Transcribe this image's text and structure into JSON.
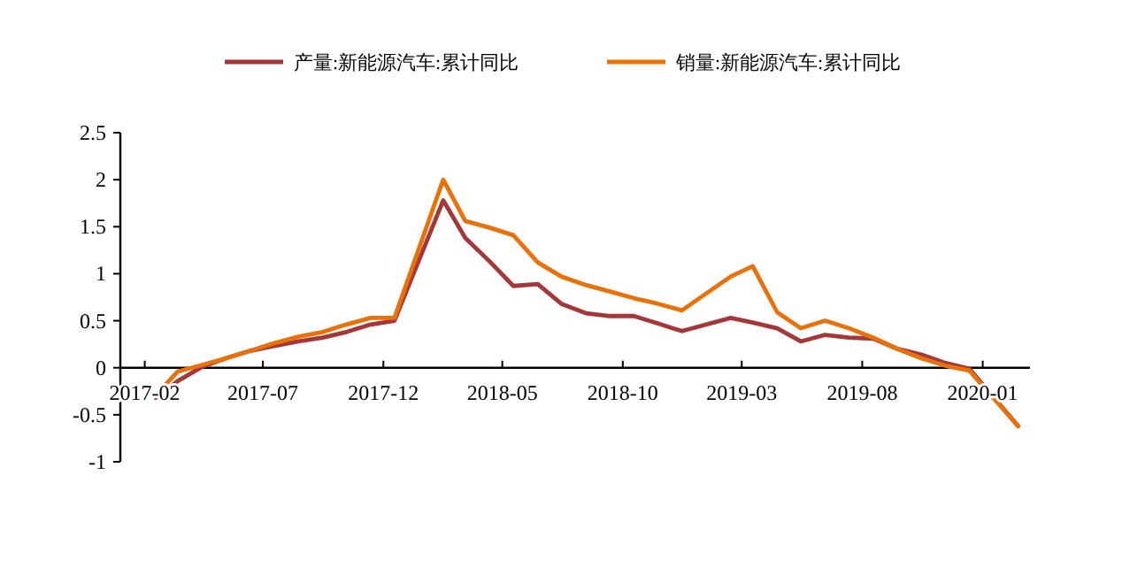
{
  "chart_data": {
    "type": "line",
    "legend": "top",
    "marker": "none",
    "line_style": "solid",
    "grid": false,
    "x": [
      "2017-02-15",
      "2017-03-15",
      "2017-04-15",
      "2017-05-15",
      "2017-06-15",
      "2017-07-15",
      "2017-08-15",
      "2017-09-15",
      "2017-10-15",
      "2017-11-15",
      "2017-12-15",
      "2018-02-15",
      "2018-03-15",
      "2018-04-15",
      "2018-05-15",
      "2018-06-15",
      "2018-07-15",
      "2018-08-15",
      "2018-09-15",
      "2018-10-15",
      "2018-11-15",
      "2018-12-15",
      "2019-02-15",
      "2019-03-15",
      "2019-04-15",
      "2019-05-15",
      "2019-06-15",
      "2019-07-15",
      "2019-08-15",
      "2019-09-15",
      "2019-10-15",
      "2019-11-15",
      "2019-12-15",
      "2020-02-15"
    ],
    "series": [
      {
        "name": "产量:新能源汽车:累计同比",
        "color": "#a5373a",
        "values": [
          -0.32,
          -0.14,
          0.01,
          0.1,
          0.18,
          0.23,
          0.28,
          0.32,
          0.38,
          0.46,
          0.5,
          1.78,
          1.38,
          1.13,
          0.87,
          0.89,
          0.68,
          0.58,
          0.55,
          0.55,
          0.47,
          0.39,
          0.53,
          0.48,
          0.42,
          0.28,
          0.35,
          0.32,
          0.31,
          0.2,
          0.14,
          0.05,
          -0.01,
          -0.62
        ]
      },
      {
        "name": "销量:新能源汽车:累计同比",
        "color": "#e8710a",
        "values": [
          -0.29,
          -0.04,
          0.03,
          0.1,
          0.18,
          0.26,
          0.33,
          0.38,
          0.46,
          0.53,
          0.53,
          2.0,
          1.56,
          1.49,
          1.41,
          1.12,
          0.97,
          0.88,
          0.81,
          0.74,
          0.68,
          0.61,
          0.97,
          1.08,
          0.59,
          0.42,
          0.5,
          0.42,
          0.32,
          0.2,
          0.1,
          0.02,
          -0.03,
          -0.62
        ]
      }
    ],
    "xlim": [
      "2017-01",
      "2020-03"
    ],
    "xticks": [
      "2017-02",
      "2017-07",
      "2017-12",
      "2018-05",
      "2018-10",
      "2019-03",
      "2019-08",
      "2020-01"
    ],
    "ylim": [
      -1,
      2.5
    ],
    "yticks": [
      -1,
      {
        "value": -0.5,
        "label": "-0.5"
      },
      0,
      {
        "value": 0.5,
        "label": "0.5"
      },
      1,
      {
        "value": 1.5,
        "label": "1.5"
      },
      2,
      {
        "value": 2.5,
        "label": "2.5"
      }
    ]
  }
}
